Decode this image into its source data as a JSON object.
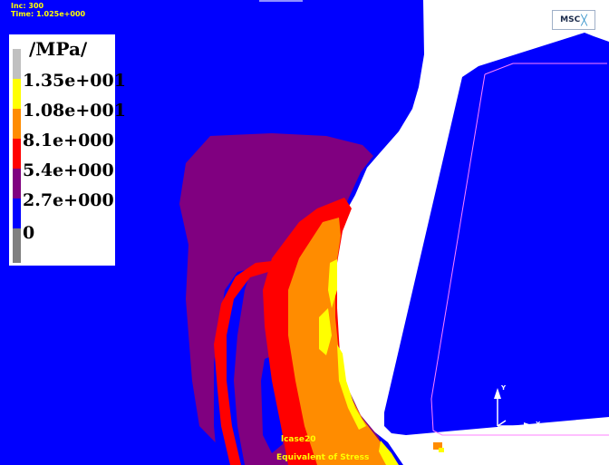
{
  "hud": {
    "inc": "Inc:  300",
    "time": "Time:  1.025e+000"
  },
  "legend": {
    "title": "/MPa/",
    "levels": [
      {
        "label": "1.35e+001",
        "color": "#ffff00"
      },
      {
        "label": "1.08e+001",
        "color": "#ff8c00"
      },
      {
        "label": "8.1e+000",
        "color": "#ff0000"
      },
      {
        "label": "5.4e+000",
        "color": "#800080"
      },
      {
        "label": "2.7e+000",
        "color": "#0000ff"
      },
      {
        "label": "0",
        "color": "#808080"
      }
    ],
    "top_color": "#c0c0c0"
  },
  "logo": {
    "text": "MSC"
  },
  "footer": {
    "case": "lcase20",
    "variable": "Equivalent of Stress"
  },
  "triad": {
    "y_label": "Y",
    "x_label": "X"
  },
  "colors": {
    "background": "#0000ff",
    "tool": "#0000ff",
    "chip_gap": "#ffffff",
    "purple": "#800080",
    "red": "#ff0000",
    "orange": "#ff8c00",
    "yellow": "#ffff00"
  }
}
